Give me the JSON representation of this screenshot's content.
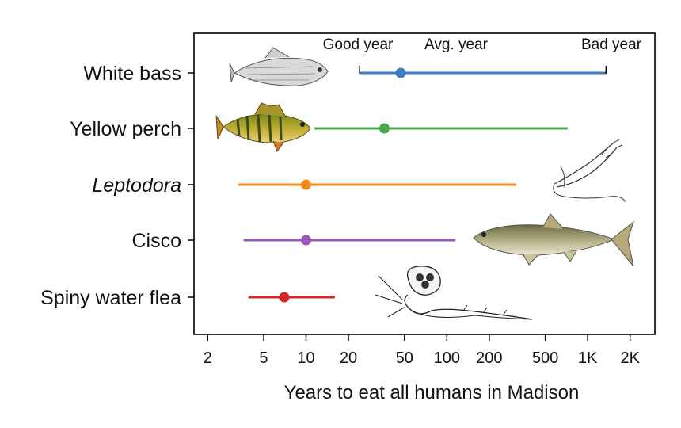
{
  "chart_data": {
    "type": "interval",
    "xlabel": "Years to eat all humans in Madison",
    "xscale": "log",
    "xlim": [
      1.6,
      3000
    ],
    "x_ticks": [
      2,
      5,
      10,
      20,
      50,
      100,
      200,
      500,
      1000,
      2000
    ],
    "x_tick_labels": [
      "2",
      "5",
      "10",
      "20",
      "50",
      "100",
      "200",
      "500",
      "1K",
      "2K"
    ],
    "grid": false,
    "categories": [
      "White bass",
      "Yellow perch",
      "Leptodora",
      "Cisco",
      "Spiny water flea"
    ],
    "italic_categories": [
      "Leptodora"
    ],
    "series": [
      {
        "category": "White bass",
        "low": 24,
        "mid": 47,
        "high": 1350,
        "color": "#3a7ebf"
      },
      {
        "category": "Yellow perch",
        "low": 11.5,
        "mid": 36,
        "high": 720,
        "color": "#4aa84a"
      },
      {
        "category": "Leptodora",
        "low": 3.3,
        "mid": 10,
        "high": 310,
        "color": "#f28a1c"
      },
      {
        "category": "Cisco",
        "low": 3.6,
        "mid": 10,
        "high": 115,
        "color": "#9b59b6"
      },
      {
        "category": "Spiny water flea",
        "low": 3.9,
        "mid": 7,
        "high": 16,
        "color": "#d62728"
      }
    ],
    "annotations": {
      "good": "Good year",
      "avg": "Avg. year",
      "bad": "Bad year"
    },
    "icons": [
      "white-bass-illustration",
      "yellow-perch-illustration",
      "leptodora-illustration",
      "cisco-illustration",
      "spiny-water-flea-illustration"
    ]
  }
}
